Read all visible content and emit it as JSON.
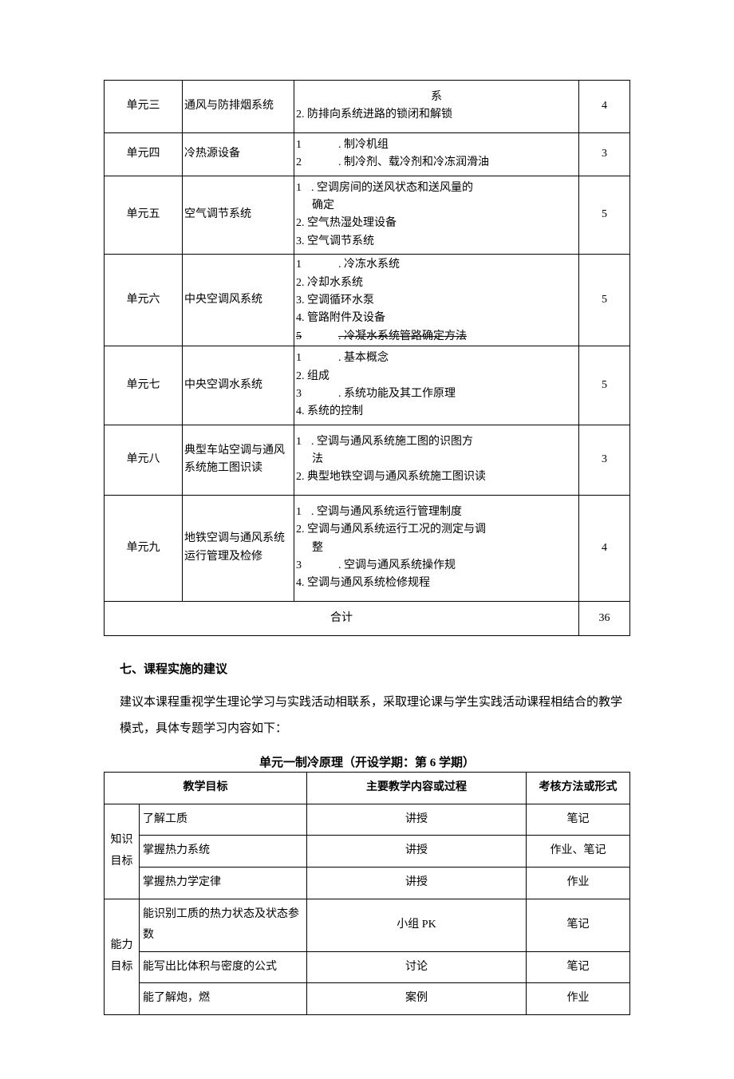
{
  "table1": {
    "rows": [
      {
        "unit": "单元三",
        "title": "通风与防排烟系统",
        "content_html": "<span class='content-line' style='text-align:center;'>系</span><span class='content-line'>2. 防排向系统进路的锁闭和解锁</span>",
        "hours": "4",
        "tall": true
      },
      {
        "unit": "单元四",
        "title": "冷热源设备",
        "content_html": "<span class='content-line'>1<span class='num-pad'></span>. 制冷机组</span><span class='content-line'>2<span class='num-pad'></span>. 制冷剂、载冷剂和冷冻润滑油</span>",
        "hours": "3"
      },
      {
        "unit": "单元五",
        "title": "空气调节系统",
        "content_html": "<span class='content-line'>1<span class='num-pad-s'></span>. 空调房间的送风状态和送风量的</span><span class='content-line'><span class='indent'>确定</span></span><span class='content-line'>2. 空气热湿处理设备</span><span class='content-line'>3. 空气调节系统</span>",
        "hours": "5"
      },
      {
        "unit": "单元六",
        "title": "中央空调风系统",
        "content_html": "<span class='content-line'>1<span class='num-pad'></span>. 冷冻水系统</span><span class='content-line'>2. 冷却水系统</span><span class='content-line'>3. 空调循环水泵</span><span class='content-line'>4. 管路附件及设备</span><span class='content-line strike-row'>5<span class='num-pad'></span>. 冷凝水系统管路确定方法</span>",
        "hours": "5",
        "clip_bottom": true
      },
      {
        "unit": "单元七",
        "title": "中央空调水系统",
        "content_html": "<span class='content-line'>1<span class='num-pad'></span>. 基本概念</span><span class='content-line'>2. 组成</span><span class='content-line'>3<span class='num-pad'></span>. 系统功能及其工作原理</span><span class='content-line'>4. 系统的控制</span>",
        "hours": "5"
      },
      {
        "unit": "单元八",
        "title": "典型车站空调与通风系统施工图识读",
        "content_html": "<span class='content-line'>1<span class='num-pad-s'></span>. 空调与通风系统施工图的识图方</span><span class='content-line'><span class='indent'>法</span></span><span class='content-line'>2. 典型地铁空调与通风系统施工图识读</span>",
        "hours": "3",
        "tall": true
      },
      {
        "unit": "单元九",
        "title": "地铁空调与通风系统运行管理及检修",
        "content_html": "<span class='content-line'>1<span class='num-pad-s'></span>. 空调与通风系统运行管理制度</span><span class='content-line'>2. 空调与通风系统运行工况的测定与调</span><span class='content-line'><span class='indent'>整</span></span><span class='content-line'>3<span class='num-pad'></span>. 空调与通风系统操作规</span><span class='content-line'>4. 空调与通风系统检修规程</span>",
        "hours": "4",
        "tall": true
      }
    ],
    "total_label": "合计",
    "total_hours": "36"
  },
  "section_heading": "七、课程实施的建议",
  "paragraph": "建议本课程重视学生理论学习与实践活动相联系，采取理论课与学生实践活动课程相结合的教学模式，具体专题学习内容如下：",
  "subtitle": "单元一制冷原理（开设学期：第 6 学期）",
  "table2": {
    "headers": {
      "goal": "教学目标",
      "method": "主要教学内容或过程",
      "assess": "考核方法或形式"
    },
    "groups": [
      {
        "cat": "知识目标",
        "rows": [
          {
            "goal": "了解工质",
            "method": "讲授",
            "assess": "笔记"
          },
          {
            "goal": "掌握热力系统",
            "method": "讲授",
            "assess": "作业、笔记"
          },
          {
            "goal": "掌握热力学定律",
            "method": "讲授",
            "assess": "作业"
          }
        ]
      },
      {
        "cat": "能力目标",
        "rows": [
          {
            "goal": "能识别工质的热力状态及状态参数",
            "method": "小组 PK",
            "assess": "笔记"
          },
          {
            "goal": "能写出比体积与密度的公式",
            "method": "讨论",
            "assess": "笔记"
          },
          {
            "goal": "能了解炮，燃",
            "method": "案例",
            "assess": "作业"
          }
        ]
      }
    ]
  }
}
